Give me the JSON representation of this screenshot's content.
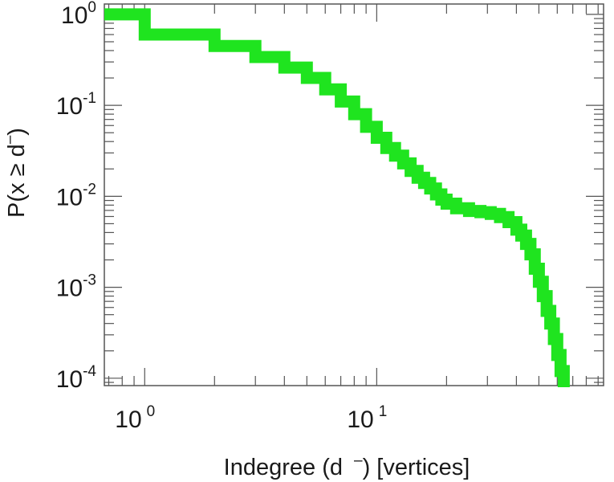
{
  "chart_data": {
    "type": "line",
    "title": "",
    "xlabel_parts": [
      "Indegree (d",
      "–",
      ") [vertices]"
    ],
    "ylabel_parts": [
      "P(x ",
      "≥",
      " d",
      "–",
      ")"
    ],
    "x_scale": "log",
    "y_scale": "log",
    "xlim": [
      0.67,
      95
    ],
    "ylim": [
      8.3e-05,
      1.3
    ],
    "grid": false,
    "x_ticks": [
      {
        "base": "10",
        "exp": "0",
        "value": 1
      },
      {
        "base": "10",
        "exp": "1",
        "value": 10
      }
    ],
    "y_ticks": [
      {
        "base": "10",
        "exp": "0",
        "value": 1
      },
      {
        "base": "10",
        "exp": "-1",
        "value": 0.1
      },
      {
        "base": "10",
        "exp": "-2",
        "value": 0.01
      },
      {
        "base": "10",
        "exp": "-3",
        "value": 0.001
      },
      {
        "base": "10",
        "exp": "-4",
        "value": 0.0001
      }
    ],
    "series": [
      {
        "color": "#1fe41f",
        "step": true,
        "x": [
          0.67,
          1,
          2,
          3,
          4,
          5,
          6,
          7,
          8,
          9,
          10,
          11,
          12,
          13,
          14,
          15,
          16,
          17,
          18,
          19,
          20,
          22,
          25,
          28,
          31,
          34,
          37,
          40,
          42,
          44,
          46,
          48,
          50,
          52,
          54,
          56,
          58,
          60,
          62,
          64
        ],
        "y": [
          1.0,
          0.6,
          0.45,
          0.34,
          0.26,
          0.2,
          0.15,
          0.11,
          0.08,
          0.058,
          0.044,
          0.034,
          0.028,
          0.023,
          0.019,
          0.016,
          0.014,
          0.0122,
          0.0105,
          0.0092,
          0.0083,
          0.0074,
          0.0069,
          0.0067,
          0.0064,
          0.0059,
          0.0052,
          0.0043,
          0.0037,
          0.003,
          0.0023,
          0.0016,
          0.00115,
          0.0008,
          0.00055,
          0.0004,
          0.00027,
          0.00018,
          0.00012,
          8.5e-05
        ]
      }
    ]
  }
}
